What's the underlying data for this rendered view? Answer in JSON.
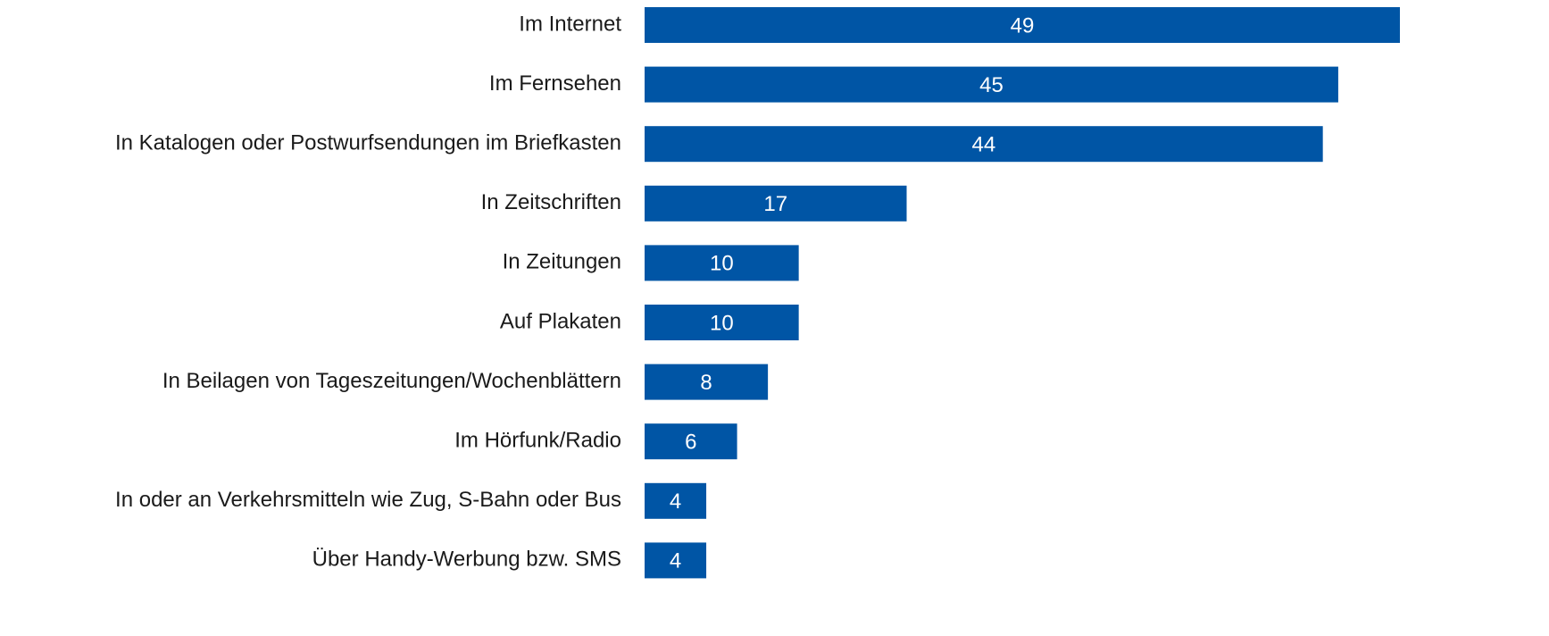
{
  "chart_data": {
    "type": "bar",
    "orientation": "horizontal",
    "categories": [
      "Im Internet",
      "Im Fernsehen",
      "In Katalogen oder Postwurfsendungen im Briefkasten",
      "In Zeitschriften",
      "In Zeitungen",
      "Auf Plakaten",
      "In Beilagen von Tageszeitungen/Wochenblättern",
      "Im Hörfunk/Radio",
      "In oder an Verkehrsmitteln wie Zug, S-Bahn oder Bus",
      "Über Handy-Werbung bzw. SMS"
    ],
    "values": [
      49,
      45,
      44,
      17,
      10,
      10,
      8,
      6,
      4,
      4
    ],
    "color": "#0055a5"
  }
}
